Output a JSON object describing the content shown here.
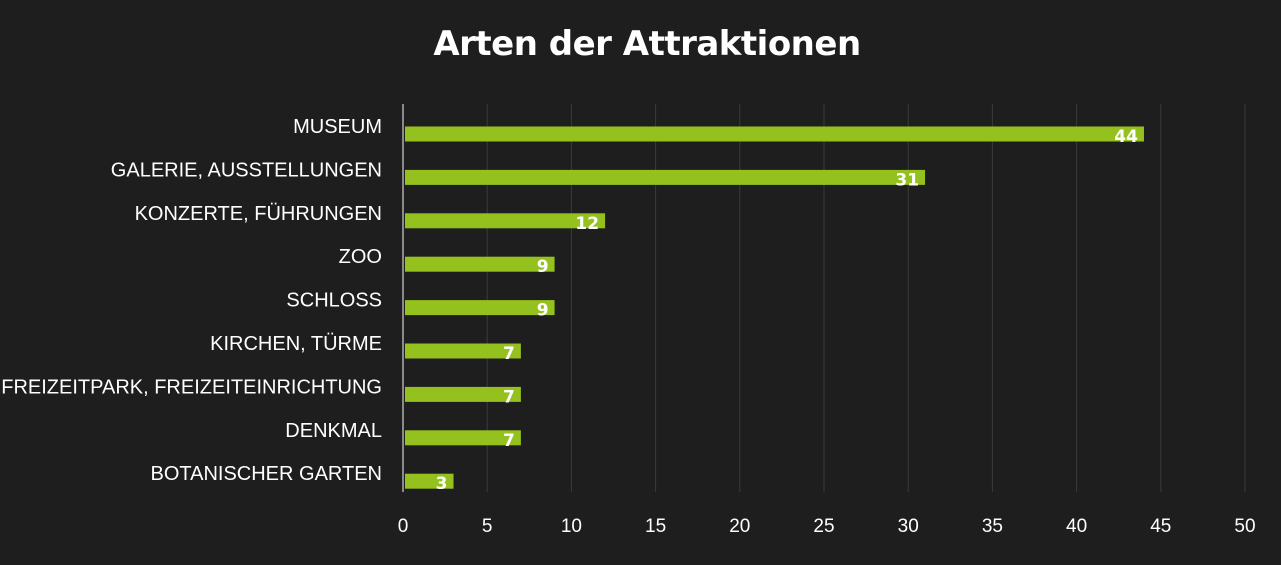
{
  "chart_data": {
    "type": "bar",
    "orientation": "horizontal",
    "title": "Arten der Attraktionen",
    "categories": [
      "MUSEUM",
      "GALERIE, AUSSTELLUNGEN",
      "KONZERTE, FÜHRUNGEN",
      "ZOO",
      "SCHLOSS",
      "KIRCHEN, TÜRME",
      "FREIZEITPARK, FREIZEITEINRICHTUNG",
      "DENKMAL",
      "BOTANISCHER GARTEN"
    ],
    "values": [
      44,
      31,
      12,
      9,
      9,
      7,
      7,
      7,
      3
    ],
    "value_labels": [
      "44",
      "31",
      "12",
      "9",
      "9",
      "7",
      "7",
      "7",
      "3"
    ],
    "xlabel": "",
    "ylabel": "",
    "xlim": [
      0,
      50
    ],
    "x_ticks": [
      0,
      5,
      10,
      15,
      20,
      25,
      30,
      35,
      40,
      45,
      50
    ],
    "x_tick_labels": [
      "0",
      "5",
      "10",
      "15",
      "20",
      "25",
      "30",
      "35",
      "40",
      "45",
      "50"
    ],
    "grid": true,
    "legend": "none",
    "colors": {
      "background": "#1e1e1e",
      "bar": "#95c11f",
      "grid": "#3a3a3a",
      "axis": "#8a8a8a",
      "text": "#ffffff"
    }
  }
}
